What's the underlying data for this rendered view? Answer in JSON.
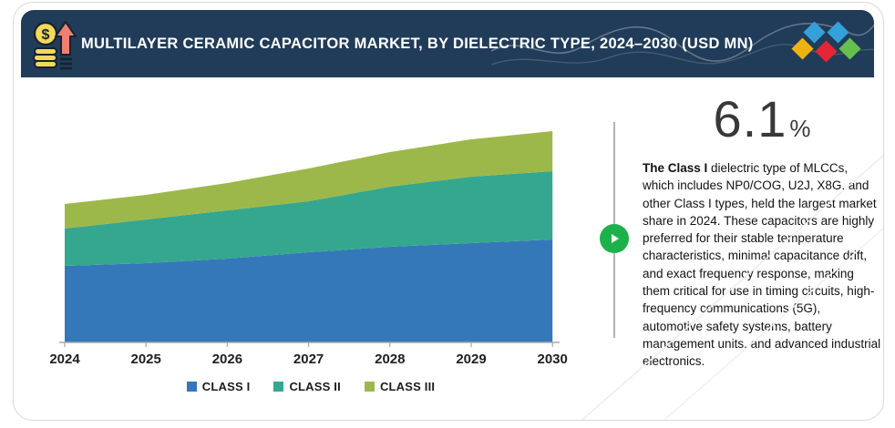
{
  "header": {
    "title": "MULTILAYER CERAMIC CAPACITOR MARKET, BY DIELECTRIC TYPE, 2024–2030 (USD MN)",
    "background_color": "#213c58",
    "title_color": "#ffffff",
    "icons": {
      "left_icon": "money-growth-icon (coin with $ over coin stack + rising arrow)",
      "right_icon": "diamond-logo (yellow, blue, blue, red, green diamonds)"
    }
  },
  "chart_data": {
    "type": "area",
    "stacked": true,
    "title": "MULTILAYER CERAMIC CAPACITOR MARKET, BY DIELECTRIC TYPE, 2024–2030 (USD MN)",
    "x_labels": [
      "2024",
      "2025",
      "2026",
      "2027",
      "2028",
      "2029",
      "2030"
    ],
    "series": [
      {
        "name": "CLASS I",
        "color": "#3478b9",
        "values": [
          84,
          87,
          92,
          99,
          105,
          109,
          113
        ]
      },
      {
        "name": "CLASS II",
        "color": "#35a78e",
        "values": [
          41,
          48,
          53,
          56,
          66,
          73,
          75
        ]
      },
      {
        "name": "CLASS III",
        "color": "#9db84a",
        "values": [
          27,
          27,
          30,
          36,
          38,
          41,
          44
        ]
      }
    ],
    "value_units": "USD MN",
    "value_note": "No y-axis shown in source; series values are relative estimates read from band heights",
    "legend_position": "bottom",
    "grid": false,
    "axis_color": "#a8a8a8",
    "tick_label_color": "#1f1f1f"
  },
  "highlight": {
    "value": "6.1",
    "percent_sign": "%",
    "description_bold": "The Class I",
    "description_rest": " dielectric type of MLCCs, which includes NP0/COG, U2J, X8G, and other Class I types, held the largest market share in 2024. These capacitors are highly preferred for their stable temperature characteristics, minimal capacitance drift, and exact frequency response, making them critical for use in timing circuits, high-frequency communications (5G), automotive safety systems, battery management units, and advanced industrial electronics."
  },
  "play_control": {
    "name": "play-button",
    "color": "#1db14c"
  }
}
